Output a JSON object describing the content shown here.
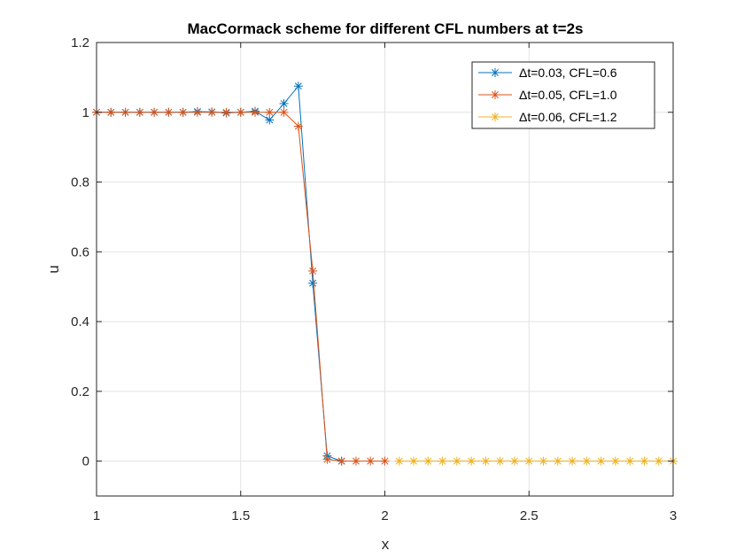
{
  "chart_data": {
    "type": "line",
    "title": "MacCormack scheme for different CFL numbers at t=2s",
    "xlabel": "x",
    "ylabel": "u",
    "xlim": [
      1,
      3
    ],
    "ylim": [
      -0.1,
      1.2
    ],
    "xticks": [
      "1",
      "1.5",
      "2",
      "2.5",
      "3"
    ],
    "yticks": [
      "0",
      "0.2",
      "0.4",
      "0.6",
      "0.8",
      "1",
      "1.2"
    ],
    "grid": true,
    "legend_position": "top-right",
    "series": [
      {
        "name": "Δt=0.03, CFL=0.6",
        "color": "#0072BD",
        "marker": "asterisk",
        "x": [
          1.0,
          1.05,
          1.1,
          1.15,
          1.2,
          1.25,
          1.3,
          1.35,
          1.4,
          1.45,
          1.5,
          1.55,
          1.6,
          1.65,
          1.7,
          1.75,
          1.8,
          1.85
        ],
        "y": [
          1.0,
          1.0,
          1.0,
          1.0,
          1.0,
          1.0,
          1.0,
          1.002,
          1.001,
          0.998,
          1.0,
          1.003,
          0.978,
          1.025,
          1.075,
          0.51,
          0.015,
          0.0
        ]
      },
      {
        "name": "Δt=0.05, CFL=1.0",
        "color": "#D95319",
        "marker": "asterisk",
        "x": [
          1.0,
          1.05,
          1.1,
          1.15,
          1.2,
          1.25,
          1.3,
          1.35,
          1.4,
          1.45,
          1.5,
          1.55,
          1.6,
          1.65,
          1.7,
          1.75,
          1.8,
          1.85,
          1.9,
          1.95,
          2.0
        ],
        "y": [
          1.0,
          1.0,
          1.0,
          1.0,
          1.0,
          1.0,
          1.0,
          1.0,
          1.0,
          1.0,
          1.0,
          1.0,
          1.0,
          1.0,
          0.96,
          0.545,
          0.005,
          0.0,
          0.0,
          0.0,
          0.0
        ]
      },
      {
        "name": "Δt=0.06, CFL=1.2",
        "color": "#EDB120",
        "marker": "asterisk",
        "x": [
          2.05,
          2.1,
          2.15,
          2.2,
          2.25,
          2.3,
          2.35,
          2.4,
          2.45,
          2.5,
          2.55,
          2.6,
          2.65,
          2.7,
          2.75,
          2.8,
          2.85,
          2.9,
          2.95,
          3.0
        ],
        "y": [
          0,
          0,
          0,
          0,
          0,
          0,
          0,
          0,
          0,
          0,
          0,
          0,
          0,
          0,
          0,
          0,
          0,
          0,
          0,
          0
        ]
      }
    ]
  }
}
